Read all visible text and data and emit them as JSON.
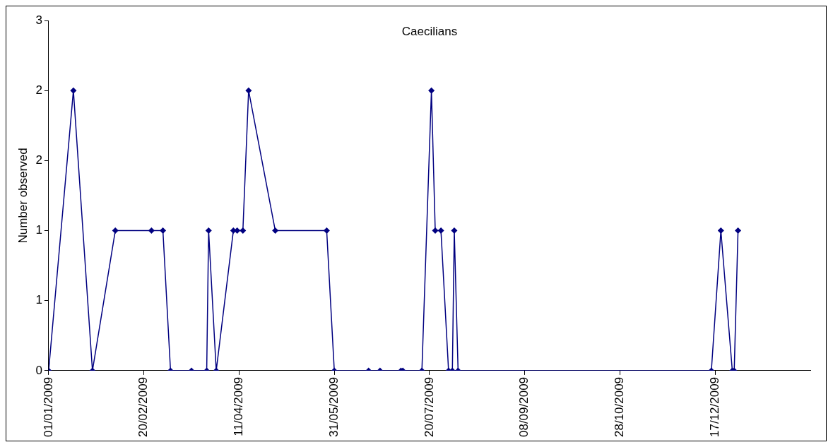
{
  "chart_data": {
    "type": "line",
    "title": "Caecilians",
    "ylabel": "Number observed",
    "marker": "diamond",
    "legend": false,
    "x": [
      "2009-01-01",
      "2009-01-14",
      "2009-01-24",
      "2009-02-05",
      "2009-02-24",
      "2009-03-02",
      "2009-03-06",
      "2009-03-17",
      "2009-03-25",
      "2009-03-26",
      "2009-03-30",
      "2009-04-08",
      "2009-04-10",
      "2009-04-13",
      "2009-04-16",
      "2009-04-30",
      "2009-05-27",
      "2009-05-31",
      "2009-06-18",
      "2009-06-24",
      "2009-07-05",
      "2009-07-06",
      "2009-07-16",
      "2009-07-21",
      "2009-07-23",
      "2009-07-26",
      "2009-07-30",
      "2009-08-01",
      "2009-08-02",
      "2009-08-04",
      "2009-12-15",
      "2009-12-20",
      "2009-12-26",
      "2009-12-27",
      "2009-12-29"
    ],
    "series": [
      {
        "color": "#000080",
        "values": [
          0,
          2,
          0,
          1,
          1,
          1,
          0,
          0,
          0,
          1,
          0,
          1,
          1,
          1,
          2,
          1,
          1,
          0,
          0,
          0,
          0,
          0,
          0,
          2,
          1,
          1,
          0,
          0,
          1,
          0,
          0,
          1,
          0,
          0,
          1
        ]
      }
    ],
    "xlim": [
      "2009-01-01",
      "2010-02-05"
    ],
    "xticks": [
      {
        "value": "2009-01-01",
        "label": "01/01/2009"
      },
      {
        "value": "2009-02-20",
        "label": "20/02/2009"
      },
      {
        "value": "2009-04-11",
        "label": "11/04/2009"
      },
      {
        "value": "2009-05-31",
        "label": "31/05/2009"
      },
      {
        "value": "2009-07-20",
        "label": "20/07/2009"
      },
      {
        "value": "2009-09-08",
        "label": "08/09/2009"
      },
      {
        "value": "2009-10-28",
        "label": "28/10/2009"
      },
      {
        "value": "2009-12-17",
        "label": "17/12/2009"
      }
    ],
    "ylim": [
      0,
      2.5
    ],
    "yticks": [
      0,
      {
        "value": 0.5,
        "label": "1"
      },
      1,
      {
        "value": 1.5,
        "label": "2"
      },
      2,
      {
        "value": 2.5,
        "label": "3"
      }
    ]
  }
}
